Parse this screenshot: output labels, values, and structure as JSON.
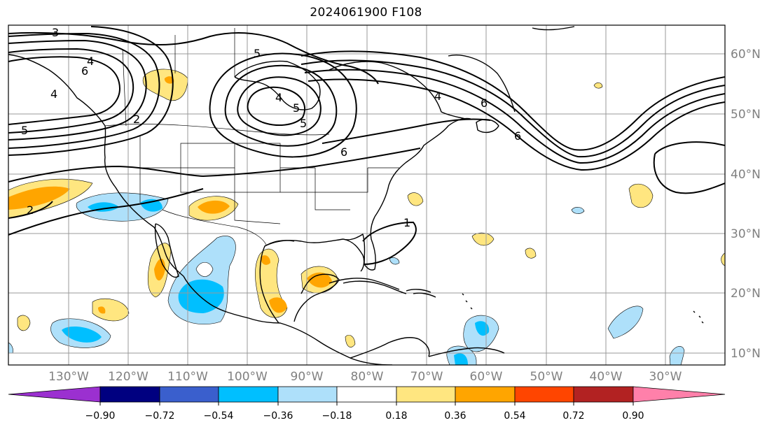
{
  "title": "2024061900 F108",
  "longitude_labels": [
    "130°W",
    "120°W",
    "110°W",
    "100°W",
    "90°W",
    "80°W",
    "70°W",
    "60°W",
    "50°W",
    "40°W",
    "30°W"
  ],
  "latitude_labels": [
    "60°N",
    "50°N",
    "40°N",
    "30°N",
    "20°N",
    "10°N"
  ],
  "colorbar": {
    "tick_labels": [
      "−0.90",
      "−0.72",
      "−0.54",
      "−0.36",
      "−0.18",
      "0.18",
      "0.36",
      "0.54",
      "0.72",
      "0.90"
    ],
    "colors": [
      "#9b30d0",
      "#000080",
      "#3a5fcd",
      "#00bfff",
      "#aee0fa",
      "#ffffff",
      "#ffe680",
      "#ffa500",
      "#ff4500",
      "#b22222",
      "#ff80aa"
    ]
  },
  "contour_labels": [
    "3",
    "5",
    "4",
    "6",
    "4",
    "5",
    "2",
    "2",
    "5",
    "4",
    "5",
    "6",
    "6",
    "4",
    "6",
    "1"
  ],
  "colors": {
    "contour": "#000000",
    "coast": "#000000",
    "grid": "#999999",
    "axis_label": "#808080"
  }
}
